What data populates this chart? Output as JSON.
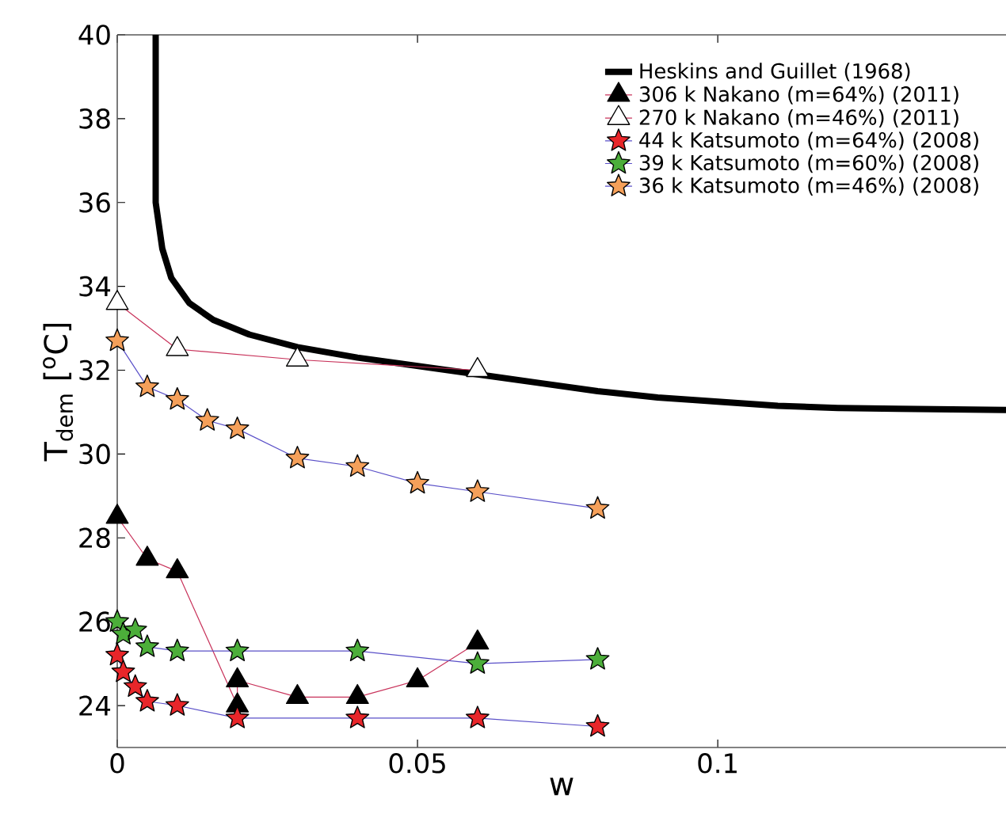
{
  "chart_data": {
    "type": "line",
    "xlabel": "w",
    "ylabel": "T$_{dem}$ [$^{o}$C]",
    "xlim": [
      0,
      0.148
    ],
    "ylim": [
      23,
      40
    ],
    "xticks": [
      0,
      0.05,
      0.1
    ],
    "yticks": [
      24,
      26,
      28,
      30,
      32,
      34,
      36,
      38,
      40
    ],
    "grid": false,
    "legend": "top right",
    "series": [
      {
        "name": "Heskins and Guillet (1968)",
        "color": "#000000",
        "marker": "none",
        "x": [
          0.0064,
          0.0064,
          0.0075,
          0.009,
          0.012,
          0.016,
          0.022,
          0.03,
          0.04,
          0.05,
          0.06,
          0.07,
          0.08,
          0.09,
          0.1,
          0.11,
          0.12,
          0.13,
          0.148
        ],
        "values": [
          40,
          36,
          34.9,
          34.2,
          33.6,
          33.2,
          32.85,
          32.55,
          32.3,
          32.1,
          31.9,
          31.7,
          31.5,
          31.35,
          31.25,
          31.15,
          31.1,
          31.08,
          31.05
        ]
      },
      {
        "name": "306 k Nakano (m=64%) (2011)",
        "color": "#000000",
        "marker": "triangle",
        "x": [
          0,
          0.005,
          0.01,
          0.02,
          0.02,
          0.03,
          0.04,
          0.05,
          0.06
        ],
        "values": [
          28.5,
          27.5,
          27.2,
          24.0,
          24.6,
          24.2,
          24.2,
          24.6,
          25.5
        ]
      },
      {
        "name": "270 k Nakano (m=46%) (2011)",
        "color": "#ffffff",
        "marker": "triangle",
        "x": [
          0,
          0.01,
          0.03,
          0.06
        ],
        "values": [
          33.6,
          32.5,
          32.25,
          32.0
        ]
      },
      {
        "name": "44 k Katsumoto (m=64%) (2008)",
        "color": "#e8262a",
        "marker": "star",
        "x": [
          0,
          0.001,
          0.003,
          0.005,
          0.01,
          0.02,
          0.04,
          0.06,
          0.08
        ],
        "values": [
          25.2,
          24.8,
          24.45,
          24.1,
          24.0,
          23.7,
          23.7,
          23.7,
          23.5
        ]
      },
      {
        "name": "39 k Katsumoto (m=60%) (2008)",
        "color": "#4cae3a",
        "marker": "star",
        "x": [
          0,
          0.001,
          0.003,
          0.005,
          0.01,
          0.02,
          0.04,
          0.06,
          0.08
        ],
        "values": [
          26.0,
          25.7,
          25.8,
          25.4,
          25.3,
          25.3,
          25.3,
          25.0,
          25.1
        ]
      },
      {
        "name": "36 k Katsumoto (m=46%) (2008)",
        "color": "#f5a05a",
        "marker": "star",
        "x": [
          0,
          0.005,
          0.01,
          0.015,
          0.02,
          0.03,
          0.04,
          0.05,
          0.06,
          0.08
        ],
        "values": [
          32.7,
          31.6,
          31.3,
          30.8,
          30.6,
          29.9,
          29.7,
          29.3,
          29.1,
          28.7
        ]
      }
    ]
  }
}
